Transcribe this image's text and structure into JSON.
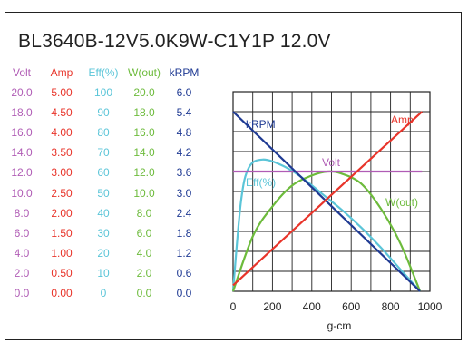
{
  "chart_data": {
    "type": "line",
    "title": "BL3640B-12V5.0K9W-C1Y1P   12.0V",
    "xlabel": "g-cm",
    "x_ticks": [
      "0",
      "200",
      "400",
      "600",
      "800",
      "1000"
    ],
    "xlim": [
      0,
      1000
    ],
    "grid": true,
    "value_columns": [
      {
        "name": "Volt",
        "color": "#b05cb5",
        "values": [
          "20.0",
          "18.0",
          "16.0",
          "14.0",
          "12.0",
          "10.0",
          "8.0",
          "6.0",
          "4.0",
          "2.0",
          "0.0"
        ]
      },
      {
        "name": "Amp",
        "color": "#e8342a",
        "values": [
          "5.00",
          "4.50",
          "4.00",
          "3.50",
          "3.00",
          "2.50",
          "2.00",
          "1.50",
          "1.00",
          "0.50",
          "0.00"
        ]
      },
      {
        "name": "Eff(%)",
        "color": "#5bc5d8",
        "values": [
          "100",
          "90",
          "80",
          "70",
          "60",
          "50",
          "40",
          "30",
          "20",
          "10",
          "0"
        ]
      },
      {
        "name": "W(out)",
        "color": "#6dbb3c",
        "values": [
          "20.0",
          "18.0",
          "16.0",
          "14.0",
          "12.0",
          "10.0",
          "8.0",
          "6.0",
          "4.0",
          "2.0",
          "0.0"
        ]
      },
      {
        "name": "kRPM",
        "color": "#1f3a93",
        "values": [
          "6.0",
          "5.4",
          "4.8",
          "4.2",
          "3.6",
          "3.0",
          "2.4",
          "1.8",
          "1.2",
          "0.6",
          "0.0"
        ]
      }
    ],
    "series": [
      {
        "name": "kRPM",
        "color": "#1f3a93",
        "scale": "kRPM",
        "x": [
          0,
          950
        ],
        "y": [
          5.4,
          0.0
        ]
      },
      {
        "name": "Amp",
        "color": "#e8342a",
        "scale": "Amp",
        "x": [
          0,
          960
        ],
        "y": [
          0.15,
          4.5
        ]
      },
      {
        "name": "Volt",
        "color": "#b05cb5",
        "scale": "Volt",
        "x": [
          0,
          960
        ],
        "y": [
          12.0,
          12.0
        ]
      },
      {
        "name": "Eff(%)",
        "color": "#5bc5d8",
        "scale": "Eff(%)",
        "x": [
          0,
          40,
          80,
          150,
          250,
          350,
          450,
          550,
          650,
          750,
          850,
          950
        ],
        "y": [
          0,
          45,
          62,
          66,
          63,
          57,
          49,
          41,
          32,
          22,
          11,
          0
        ]
      },
      {
        "name": "W(out)",
        "color": "#6dbb3c",
        "scale": "W(out)",
        "x": [
          0,
          100,
          200,
          300,
          400,
          480,
          550,
          650,
          750,
          850,
          950
        ],
        "y": [
          0,
          5.5,
          8.5,
          10.6,
          11.6,
          12.0,
          11.8,
          10.8,
          8.3,
          4.8,
          0
        ]
      }
    ]
  }
}
